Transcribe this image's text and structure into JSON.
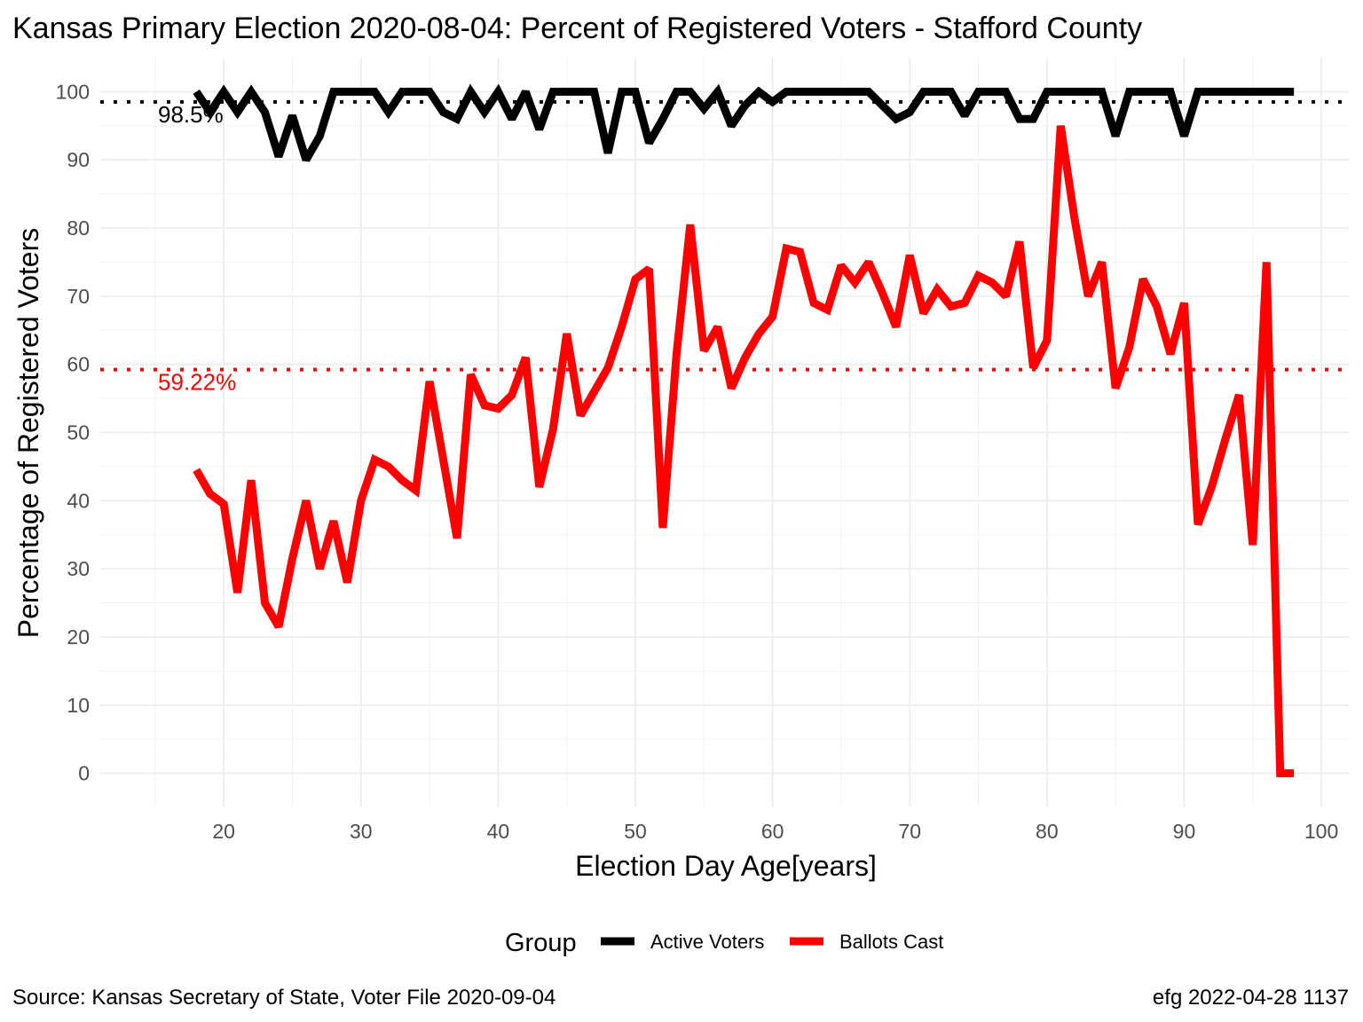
{
  "chart_data": {
    "type": "line",
    "title": "Kansas Primary Election 2020-08-04:  Percent of Registered Voters - Stafford County",
    "xlabel": "Election Day Age[years]",
    "ylabel": "Percentage of Registered Voters",
    "xlim": [
      11,
      102
    ],
    "ylim": [
      -5,
      105
    ],
    "xticks": [
      20,
      30,
      40,
      50,
      60,
      70,
      80,
      90,
      100
    ],
    "yticks": [
      0,
      10,
      20,
      30,
      40,
      50,
      60,
      70,
      80,
      90,
      100
    ],
    "grid": true,
    "legend": {
      "title": "Group",
      "placement": "bottom"
    },
    "x": [
      18,
      19,
      20,
      21,
      22,
      23,
      24,
      25,
      26,
      27,
      28,
      29,
      30,
      31,
      32,
      33,
      34,
      35,
      36,
      37,
      38,
      39,
      40,
      41,
      42,
      43,
      44,
      45,
      46,
      47,
      48,
      49,
      50,
      51,
      52,
      53,
      54,
      55,
      56,
      57,
      58,
      59,
      60,
      61,
      62,
      63,
      64,
      65,
      66,
      67,
      68,
      69,
      70,
      71,
      72,
      73,
      74,
      75,
      76,
      77,
      78,
      79,
      80,
      81,
      82,
      83,
      84,
      85,
      86,
      87,
      88,
      89,
      90,
      91,
      92,
      93,
      94,
      95,
      96,
      97,
      98
    ],
    "series": [
      {
        "name": "Active Voters",
        "color": "#000000",
        "values": [
          100,
          97,
          100,
          97,
          100,
          97,
          90.5,
          96.5,
          90,
          93.5,
          100,
          100,
          100,
          100,
          97,
          100,
          100,
          100,
          97,
          96,
          100,
          97,
          100,
          96,
          100,
          94.5,
          100,
          100,
          100,
          100,
          91,
          100,
          100,
          92.5,
          96,
          100,
          100,
          97.5,
          100,
          95,
          98,
          100,
          98.5,
          100,
          100,
          100,
          100,
          100,
          100,
          100,
          98,
          96,
          97,
          100,
          100,
          100,
          96.5,
          100,
          100,
          100,
          96,
          96,
          100,
          100,
          100,
          100,
          100,
          93.5,
          100,
          100,
          100,
          100,
          93.5,
          100,
          100,
          100,
          100,
          100,
          100,
          100,
          100
        ]
      },
      {
        "name": "Ballots Cast",
        "color": "#ff0000",
        "values": [
          44.5,
          41,
          39.5,
          26.5,
          43,
          25,
          21.5,
          31.5,
          40,
          30,
          37,
          28,
          40,
          46,
          45,
          43,
          41.5,
          57.5,
          46,
          34.5,
          58.5,
          54,
          53.5,
          55.5,
          61,
          42,
          50.5,
          64.5,
          52.5,
          56,
          59.5,
          65.5,
          72.5,
          74,
          36,
          61.5,
          80.5,
          62,
          65.5,
          56.5,
          61,
          64.5,
          67,
          77,
          76.5,
          69,
          68,
          74.5,
          72,
          75,
          70.5,
          65.5,
          76,
          67.5,
          71,
          68.5,
          69,
          73,
          72,
          70,
          78,
          59.5,
          63.5,
          95,
          81.5,
          70,
          75,
          56.5,
          62.5,
          72.5,
          68.5,
          61.5,
          69,
          36.5,
          42,
          49,
          55.5,
          33.5,
          75,
          0,
          0
        ]
      }
    ],
    "reference_lines": [
      {
        "value": 98.5,
        "label": "98.5%",
        "color": "#000000"
      },
      {
        "value": 59.22,
        "label": "59.22%",
        "color": "#ff0000"
      }
    ]
  },
  "caption": {
    "source": "Source:  Kansas Secretary of State, Voter File  2020-09-04",
    "stamp": "efg 2022-04-28 1137"
  }
}
